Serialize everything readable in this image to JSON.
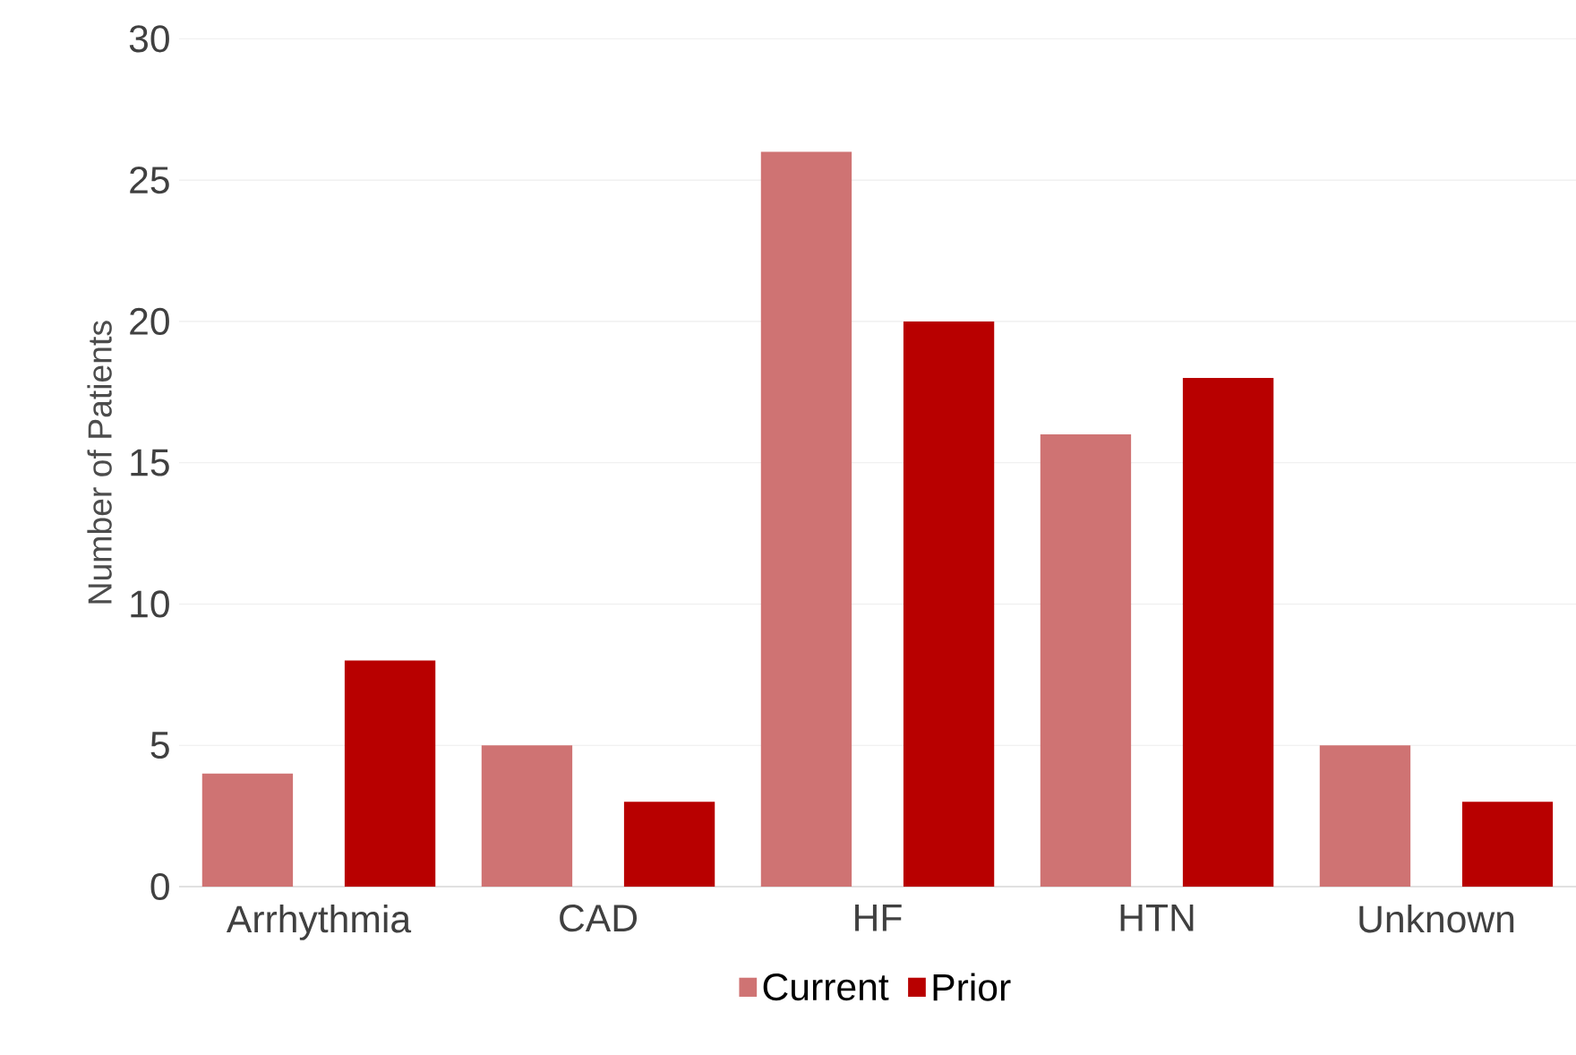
{
  "chart_data": {
    "type": "bar",
    "ylabel": "Number of Patients",
    "categories": [
      "Arrhythmia",
      "CAD",
      "HF",
      "HTN",
      "Unknown"
    ],
    "series": [
      {
        "name": "Current",
        "color": "#cf7373",
        "values": [
          4,
          5,
          26,
          16,
          5
        ]
      },
      {
        "name": "Prior",
        "color": "#b80000",
        "values": [
          8,
          3,
          20,
          18,
          3
        ]
      }
    ],
    "ylim": [
      0,
      30
    ],
    "yticks": [
      0,
      5,
      10,
      15,
      20,
      25,
      30
    ],
    "grid": "y",
    "legend": "bottom"
  }
}
